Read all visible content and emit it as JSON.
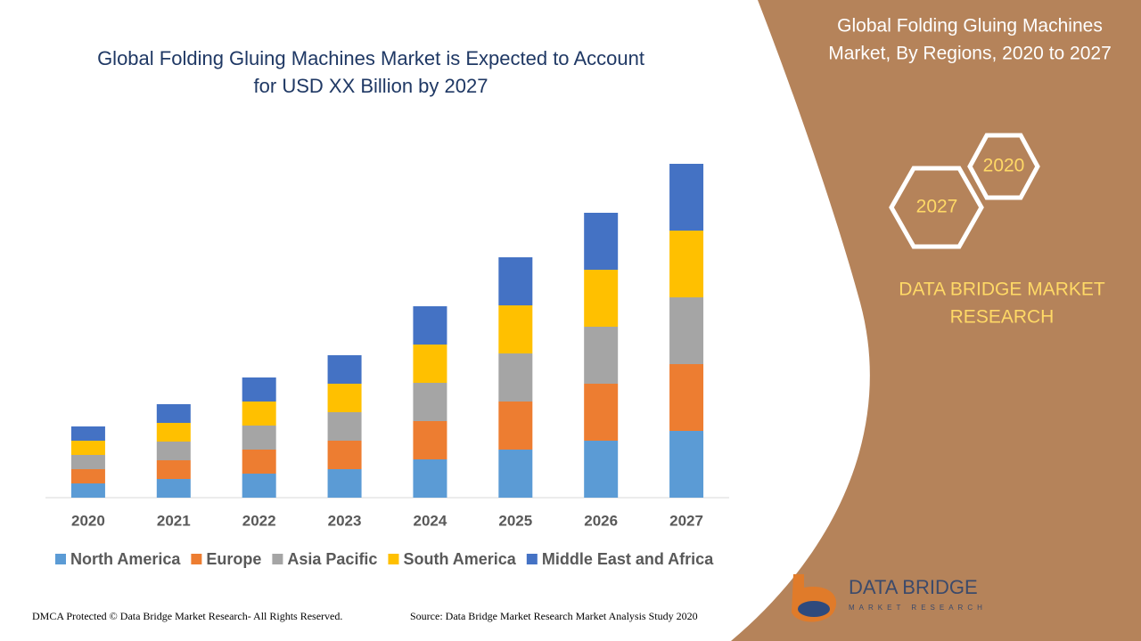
{
  "chart_data": {
    "type": "stacked-bar",
    "title": [
      "Global Folding Gluing Machines Market is Expected to Account",
      "for USD XX Billion by 2027"
    ],
    "categories": [
      "2020",
      "2021",
      "2022",
      "2023",
      "2024",
      "2025",
      "2026",
      "2027"
    ],
    "series": [
      {
        "name": "North America",
        "color": "#5b9bd5",
        "values": [
          1.6,
          2.1,
          2.7,
          3.2,
          4.3,
          5.4,
          6.4,
          7.5
        ]
      },
      {
        "name": "Europe",
        "color": "#ed7d31",
        "values": [
          1.6,
          2.1,
          2.7,
          3.2,
          4.3,
          5.4,
          6.4,
          7.5
        ]
      },
      {
        "name": "Asia Pacific",
        "color": "#a5a5a5",
        "values": [
          1.6,
          2.1,
          2.7,
          3.2,
          4.3,
          5.4,
          6.4,
          7.5
        ]
      },
      {
        "name": "South America",
        "color": "#ffc000",
        "values": [
          1.6,
          2.1,
          2.7,
          3.2,
          4.3,
          5.4,
          6.4,
          7.5
        ]
      },
      {
        "name": "Middle East and Africa",
        "color": "#4472c4",
        "values": [
          1.6,
          2.1,
          2.7,
          3.2,
          4.3,
          5.4,
          6.4,
          7.5
        ]
      }
    ],
    "legend": "bottom"
  },
  "side_panel": {
    "title": [
      "Global Folding Gluing Machines",
      "Market, By Regions, 2020 to 2027"
    ],
    "hex_labels": [
      "2020",
      "2027"
    ],
    "brand": [
      "DATA BRIDGE MARKET",
      "RESEARCH"
    ]
  },
  "logo": {
    "name": "DATA BRIDGE",
    "tagline": "MARKET RESEARCH"
  },
  "footer": {
    "left": "DMCA Protected © Data Bridge Market Research- All Rights Reserved.",
    "right": "Source: Data Bridge Market Research Market Analysis Study 2020"
  }
}
